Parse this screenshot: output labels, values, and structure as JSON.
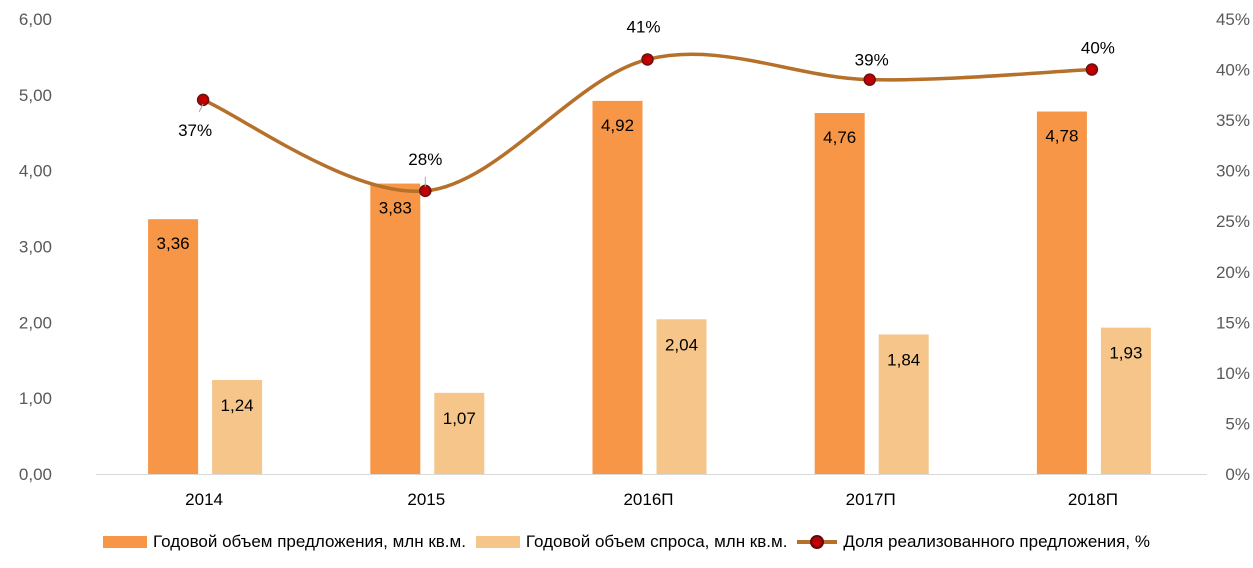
{
  "chart_data": {
    "type": "bar",
    "categories": [
      "2014",
      "2015",
      "2016П",
      "2017П",
      "2018П"
    ],
    "series": [
      {
        "name": "Годовой объем предложения, млн кв.м.",
        "type": "bar",
        "axis": "left",
        "color": "#F79646",
        "values": [
          3.36,
          3.83,
          4.92,
          4.76,
          4.78
        ],
        "labels": [
          "3,36",
          "3,83",
          "4,92",
          "4,76",
          "4,78"
        ]
      },
      {
        "name": "Годовой объем спроса, млн кв.м.",
        "type": "bar",
        "axis": "left",
        "color": "#F5C58A",
        "values": [
          1.24,
          1.07,
          2.04,
          1.84,
          1.93
        ],
        "labels": [
          "1,24",
          "1,07",
          "2,04",
          "1,84",
          "1,93"
        ]
      },
      {
        "name": "Доля реализованного предложения, %",
        "type": "line",
        "axis": "right",
        "color": "#B5702A",
        "marker_color": "#C00000",
        "values": [
          37,
          28,
          41,
          39,
          40
        ],
        "labels": [
          "37%",
          "28%",
          "41%",
          "39%",
          "40%"
        ]
      }
    ],
    "y_left": {
      "ylim": [
        0,
        6
      ],
      "ticks": [
        "0,00",
        "1,00",
        "2,00",
        "3,00",
        "4,00",
        "5,00",
        "6,00"
      ]
    },
    "y_right": {
      "ylim": [
        0,
        45
      ],
      "ticks": [
        "0%",
        "5%",
        "10%",
        "15%",
        "20%",
        "25%",
        "30%",
        "35%",
        "40%",
        "45%"
      ]
    },
    "grid": false,
    "legend_position": "bottom"
  }
}
